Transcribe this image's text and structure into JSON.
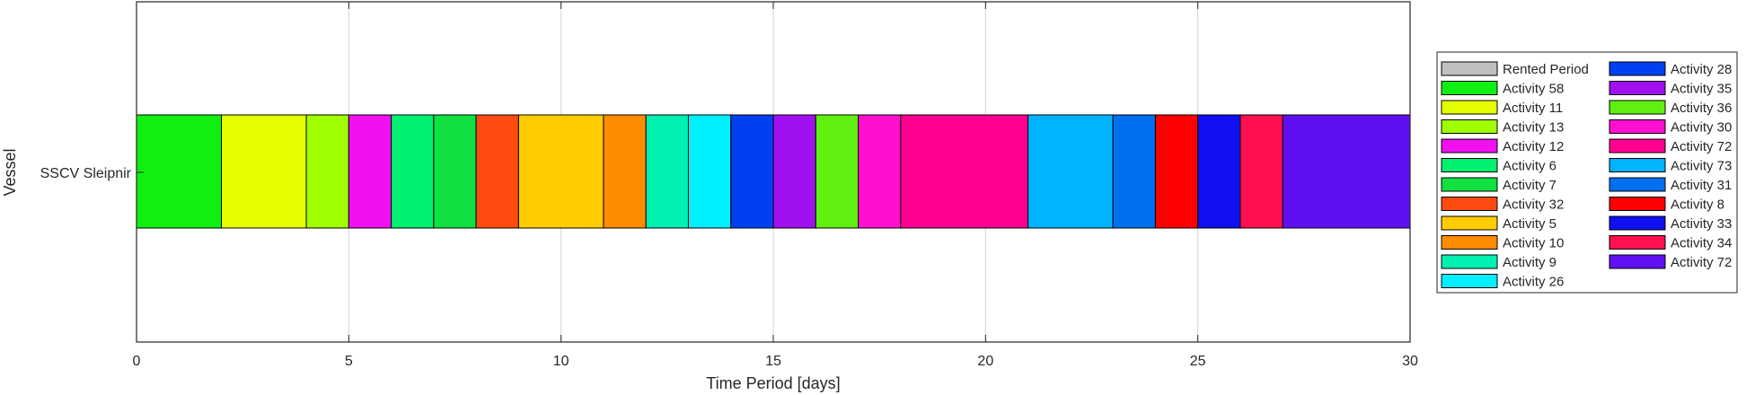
{
  "chart_data": {
    "type": "gantt",
    "title": "",
    "xlabel": "Time Period [days]",
    "ylabel": "Vessel",
    "xlim": [
      0,
      30
    ],
    "xticks": [
      0,
      5,
      10,
      15,
      20,
      25,
      30
    ],
    "grid": "x-vertical",
    "legend_placement": "right",
    "rows": [
      "SSCV Sleipnir"
    ],
    "bars": [
      {
        "label": "Activity 58",
        "start": 0,
        "end": 2,
        "color": "#10f010"
      },
      {
        "label": "Activity 11",
        "start": 2,
        "end": 4,
        "color": "#e6ff00"
      },
      {
        "label": "Activity 13",
        "start": 4,
        "end": 5,
        "color": "#a0ff00"
      },
      {
        "label": "Activity 12",
        "start": 5,
        "end": 6,
        "color": "#f010f0"
      },
      {
        "label": "Activity 6",
        "start": 6,
        "end": 7,
        "color": "#00f070"
      },
      {
        "label": "Activity 7",
        "start": 7,
        "end": 8,
        "color": "#10e040"
      },
      {
        "label": "Activity 32",
        "start": 8,
        "end": 9,
        "color": "#ff4a10"
      },
      {
        "label": "Activity 5",
        "start": 9,
        "end": 11,
        "color": "#ffcc00"
      },
      {
        "label": "Activity 10",
        "start": 11,
        "end": 12,
        "color": "#ff8c00"
      },
      {
        "label": "Activity 9",
        "start": 12,
        "end": 13,
        "color": "#00f0b0"
      },
      {
        "label": "Activity 26",
        "start": 13,
        "end": 14,
        "color": "#00f0ff"
      },
      {
        "label": "Activity 28",
        "start": 14,
        "end": 15,
        "color": "#0040f0"
      },
      {
        "label": "Activity 35",
        "start": 15,
        "end": 16,
        "color": "#a010f0"
      },
      {
        "label": "Activity 36",
        "start": 16,
        "end": 17,
        "color": "#60f010"
      },
      {
        "label": "Activity 30",
        "start": 17,
        "end": 18,
        "color": "#ff10d0"
      },
      {
        "label": "Activity 72",
        "start": 18,
        "end": 21,
        "color": "#ff0090"
      },
      {
        "label": "Activity 73",
        "start": 21,
        "end": 23,
        "color": "#00b4ff"
      },
      {
        "label": "Activity 31",
        "start": 23,
        "end": 24,
        "color": "#0070f0"
      },
      {
        "label": "Activity 8",
        "start": 24,
        "end": 25,
        "color": "#ff0000"
      },
      {
        "label": "Activity 33",
        "start": 25,
        "end": 26,
        "color": "#1010f0"
      },
      {
        "label": "Activity 34",
        "start": 26,
        "end": 27,
        "color": "#ff1050"
      },
      {
        "label": "Activity 72",
        "start": 27,
        "end": 30,
        "color": "#6010f0"
      }
    ],
    "legend": [
      {
        "label": "Rented Period",
        "color": "#c0c0c0"
      },
      {
        "label": "Activity 58",
        "color": "#10f010"
      },
      {
        "label": "Activity 11",
        "color": "#e6ff00"
      },
      {
        "label": "Activity 13",
        "color": "#a0ff00"
      },
      {
        "label": "Activity 12",
        "color": "#f010f0"
      },
      {
        "label": "Activity 6",
        "color": "#00f070"
      },
      {
        "label": "Activity 7",
        "color": "#10e040"
      },
      {
        "label": "Activity 32",
        "color": "#ff4a10"
      },
      {
        "label": "Activity 5",
        "color": "#ffcc00"
      },
      {
        "label": "Activity 10",
        "color": "#ff8c00"
      },
      {
        "label": "Activity 9",
        "color": "#00f0b0"
      },
      {
        "label": "Activity 26",
        "color": "#00f0ff"
      },
      {
        "label": "Activity 28",
        "color": "#0040f0"
      },
      {
        "label": "Activity 35",
        "color": "#a010f0"
      },
      {
        "label": "Activity 36",
        "color": "#60f010"
      },
      {
        "label": "Activity 30",
        "color": "#ff10d0"
      },
      {
        "label": "Activity 72",
        "color": "#ff0090"
      },
      {
        "label": "Activity 73",
        "color": "#00b4ff"
      },
      {
        "label": "Activity 31",
        "color": "#0070f0"
      },
      {
        "label": "Activity 8",
        "color": "#ff0000"
      },
      {
        "label": "Activity 33",
        "color": "#1010f0"
      },
      {
        "label": "Activity 34",
        "color": "#ff1050"
      },
      {
        "label": "Activity 72",
        "color": "#6010f0"
      }
    ]
  }
}
